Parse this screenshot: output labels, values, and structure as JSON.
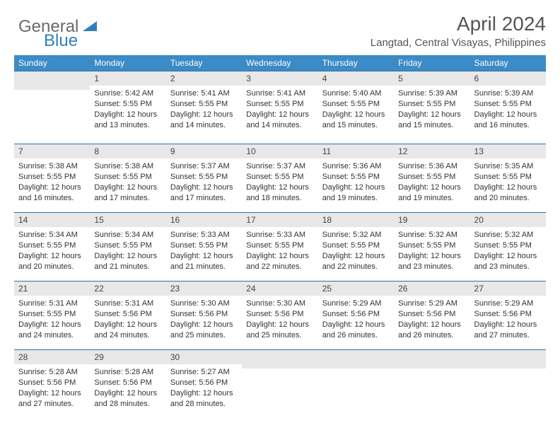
{
  "logo": {
    "textA": "General",
    "textB": "Blue"
  },
  "title": "April 2024",
  "subtitle": "Langtad, Central Visayas, Philippines",
  "header_bg": "#3b8bc6",
  "weekdays": [
    "Sunday",
    "Monday",
    "Tuesday",
    "Wednesday",
    "Thursday",
    "Friday",
    "Saturday"
  ],
  "rows": [
    [
      null,
      {
        "n": "1",
        "sr": "Sunrise: 5:42 AM",
        "ss": "Sunset: 5:55 PM",
        "dl1": "Daylight: 12 hours",
        "dl2": "and 13 minutes."
      },
      {
        "n": "2",
        "sr": "Sunrise: 5:41 AM",
        "ss": "Sunset: 5:55 PM",
        "dl1": "Daylight: 12 hours",
        "dl2": "and 14 minutes."
      },
      {
        "n": "3",
        "sr": "Sunrise: 5:41 AM",
        "ss": "Sunset: 5:55 PM",
        "dl1": "Daylight: 12 hours",
        "dl2": "and 14 minutes."
      },
      {
        "n": "4",
        "sr": "Sunrise: 5:40 AM",
        "ss": "Sunset: 5:55 PM",
        "dl1": "Daylight: 12 hours",
        "dl2": "and 15 minutes."
      },
      {
        "n": "5",
        "sr": "Sunrise: 5:39 AM",
        "ss": "Sunset: 5:55 PM",
        "dl1": "Daylight: 12 hours",
        "dl2": "and 15 minutes."
      },
      {
        "n": "6",
        "sr": "Sunrise: 5:39 AM",
        "ss": "Sunset: 5:55 PM",
        "dl1": "Daylight: 12 hours",
        "dl2": "and 16 minutes."
      }
    ],
    [
      {
        "n": "7",
        "sr": "Sunrise: 5:38 AM",
        "ss": "Sunset: 5:55 PM",
        "dl1": "Daylight: 12 hours",
        "dl2": "and 16 minutes."
      },
      {
        "n": "8",
        "sr": "Sunrise: 5:38 AM",
        "ss": "Sunset: 5:55 PM",
        "dl1": "Daylight: 12 hours",
        "dl2": "and 17 minutes."
      },
      {
        "n": "9",
        "sr": "Sunrise: 5:37 AM",
        "ss": "Sunset: 5:55 PM",
        "dl1": "Daylight: 12 hours",
        "dl2": "and 17 minutes."
      },
      {
        "n": "10",
        "sr": "Sunrise: 5:37 AM",
        "ss": "Sunset: 5:55 PM",
        "dl1": "Daylight: 12 hours",
        "dl2": "and 18 minutes."
      },
      {
        "n": "11",
        "sr": "Sunrise: 5:36 AM",
        "ss": "Sunset: 5:55 PM",
        "dl1": "Daylight: 12 hours",
        "dl2": "and 19 minutes."
      },
      {
        "n": "12",
        "sr": "Sunrise: 5:36 AM",
        "ss": "Sunset: 5:55 PM",
        "dl1": "Daylight: 12 hours",
        "dl2": "and 19 minutes."
      },
      {
        "n": "13",
        "sr": "Sunrise: 5:35 AM",
        "ss": "Sunset: 5:55 PM",
        "dl1": "Daylight: 12 hours",
        "dl2": "and 20 minutes."
      }
    ],
    [
      {
        "n": "14",
        "sr": "Sunrise: 5:34 AM",
        "ss": "Sunset: 5:55 PM",
        "dl1": "Daylight: 12 hours",
        "dl2": "and 20 minutes."
      },
      {
        "n": "15",
        "sr": "Sunrise: 5:34 AM",
        "ss": "Sunset: 5:55 PM",
        "dl1": "Daylight: 12 hours",
        "dl2": "and 21 minutes."
      },
      {
        "n": "16",
        "sr": "Sunrise: 5:33 AM",
        "ss": "Sunset: 5:55 PM",
        "dl1": "Daylight: 12 hours",
        "dl2": "and 21 minutes."
      },
      {
        "n": "17",
        "sr": "Sunrise: 5:33 AM",
        "ss": "Sunset: 5:55 PM",
        "dl1": "Daylight: 12 hours",
        "dl2": "and 22 minutes."
      },
      {
        "n": "18",
        "sr": "Sunrise: 5:32 AM",
        "ss": "Sunset: 5:55 PM",
        "dl1": "Daylight: 12 hours",
        "dl2": "and 22 minutes."
      },
      {
        "n": "19",
        "sr": "Sunrise: 5:32 AM",
        "ss": "Sunset: 5:55 PM",
        "dl1": "Daylight: 12 hours",
        "dl2": "and 23 minutes."
      },
      {
        "n": "20",
        "sr": "Sunrise: 5:32 AM",
        "ss": "Sunset: 5:55 PM",
        "dl1": "Daylight: 12 hours",
        "dl2": "and 23 minutes."
      }
    ],
    [
      {
        "n": "21",
        "sr": "Sunrise: 5:31 AM",
        "ss": "Sunset: 5:55 PM",
        "dl1": "Daylight: 12 hours",
        "dl2": "and 24 minutes."
      },
      {
        "n": "22",
        "sr": "Sunrise: 5:31 AM",
        "ss": "Sunset: 5:56 PM",
        "dl1": "Daylight: 12 hours",
        "dl2": "and 24 minutes."
      },
      {
        "n": "23",
        "sr": "Sunrise: 5:30 AM",
        "ss": "Sunset: 5:56 PM",
        "dl1": "Daylight: 12 hours",
        "dl2": "and 25 minutes."
      },
      {
        "n": "24",
        "sr": "Sunrise: 5:30 AM",
        "ss": "Sunset: 5:56 PM",
        "dl1": "Daylight: 12 hours",
        "dl2": "and 25 minutes."
      },
      {
        "n": "25",
        "sr": "Sunrise: 5:29 AM",
        "ss": "Sunset: 5:56 PM",
        "dl1": "Daylight: 12 hours",
        "dl2": "and 26 minutes."
      },
      {
        "n": "26",
        "sr": "Sunrise: 5:29 AM",
        "ss": "Sunset: 5:56 PM",
        "dl1": "Daylight: 12 hours",
        "dl2": "and 26 minutes."
      },
      {
        "n": "27",
        "sr": "Sunrise: 5:29 AM",
        "ss": "Sunset: 5:56 PM",
        "dl1": "Daylight: 12 hours",
        "dl2": "and 27 minutes."
      }
    ],
    [
      {
        "n": "28",
        "sr": "Sunrise: 5:28 AM",
        "ss": "Sunset: 5:56 PM",
        "dl1": "Daylight: 12 hours",
        "dl2": "and 27 minutes."
      },
      {
        "n": "29",
        "sr": "Sunrise: 5:28 AM",
        "ss": "Sunset: 5:56 PM",
        "dl1": "Daylight: 12 hours",
        "dl2": "and 28 minutes."
      },
      {
        "n": "30",
        "sr": "Sunrise: 5:27 AM",
        "ss": "Sunset: 5:56 PM",
        "dl1": "Daylight: 12 hours",
        "dl2": "and 28 minutes."
      },
      null,
      null,
      null,
      null
    ]
  ]
}
